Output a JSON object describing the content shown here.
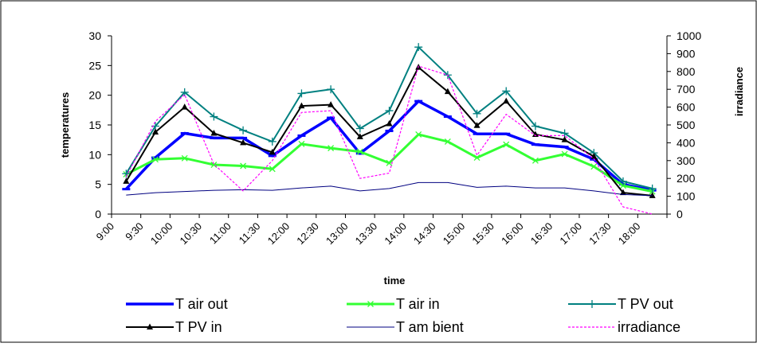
{
  "chart_data": {
    "type": "line",
    "xlabel": "time",
    "ylabel_left": "temperatures",
    "ylabel_right": "irradiance",
    "ylim_left": [
      0,
      30
    ],
    "yticks_left": [
      0,
      5,
      10,
      15,
      20,
      25,
      30
    ],
    "ylim_right": [
      0,
      1000
    ],
    "yticks_right": [
      0,
      100,
      200,
      300,
      400,
      500,
      600,
      700,
      800,
      900,
      1000
    ],
    "x_tick_labels": [
      "9:00",
      "9:30",
      "10:00",
      "10:30",
      "11:00",
      "11:30",
      "12:00",
      "12:30",
      "13:00",
      "13:30",
      "14:00",
      "14:30",
      "15:00",
      "15:30",
      "16:00",
      "16:30",
      "17:00",
      "17:30",
      "18:00"
    ],
    "x": [
      "9:15",
      "9:45",
      "10:15",
      "10:45",
      "11:15",
      "11:45",
      "12:15",
      "12:45",
      "13:15",
      "13:45",
      "14:15",
      "14:45",
      "15:15",
      "15:45",
      "16:15",
      "16:45",
      "17:15",
      "17:45",
      "18:15"
    ],
    "grid": false,
    "legend_position": "bottom",
    "series": [
      {
        "name": "T air out",
        "axis": "left",
        "color": "#0000ff",
        "marker": "dash",
        "values": [
          4.2,
          9.5,
          13.6,
          12.8,
          12.8,
          9.8,
          13.2,
          16.2,
          10.2,
          14.0,
          19.0,
          16.4,
          13.5,
          13.5,
          11.7,
          11.3,
          9.2,
          5.0,
          4.0
        ]
      },
      {
        "name": "T air in",
        "axis": "left",
        "color": "#33ff33",
        "marker": "x",
        "values": [
          6.7,
          9.2,
          9.4,
          8.3,
          8.1,
          7.6,
          11.8,
          11.1,
          10.5,
          8.6,
          13.4,
          12.2,
          9.5,
          11.7,
          9.0,
          10.1,
          8.0,
          4.8,
          3.8
        ]
      },
      {
        "name": "T PV out",
        "axis": "left",
        "color": "#008080",
        "marker": "plus",
        "values": [
          6.8,
          14.8,
          20.5,
          16.4,
          14.1,
          12.2,
          20.3,
          21.0,
          14.4,
          17.4,
          28.1,
          23.4,
          16.9,
          20.7,
          14.8,
          13.6,
          10.3,
          5.5,
          4.3
        ]
      },
      {
        "name": "T PV in",
        "axis": "left",
        "color": "#000000",
        "marker": "triangle",
        "values": [
          5.5,
          13.8,
          18.0,
          13.6,
          12.0,
          10.4,
          18.2,
          18.4,
          13.0,
          15.2,
          24.7,
          20.6,
          14.9,
          19.0,
          13.4,
          12.5,
          9.7,
          3.6,
          3.1
        ]
      },
      {
        "name": "T am bient",
        "axis": "left",
        "color": "#000080",
        "marker": "none",
        "values": [
          3.2,
          3.6,
          3.8,
          4.0,
          4.1,
          4.0,
          4.4,
          4.7,
          3.9,
          4.3,
          5.3,
          5.3,
          4.5,
          4.7,
          4.4,
          4.4,
          3.9,
          3.3,
          3.1
        ]
      },
      {
        "name": "irradiance",
        "axis": "right",
        "color": "#ff00ff",
        "marker": "none",
        "dashed": true,
        "values": [
          210,
          520,
          670,
          280,
          130,
          300,
          570,
          580,
          200,
          230,
          830,
          780,
          330,
          560,
          440,
          440,
          310,
          40,
          0
        ]
      }
    ]
  }
}
